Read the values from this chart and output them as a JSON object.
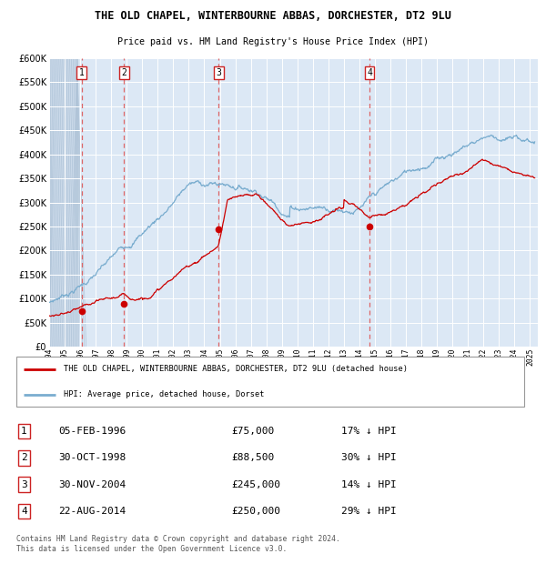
{
  "title": "THE OLD CHAPEL, WINTERBOURNE ABBAS, DORCHESTER, DT2 9LU",
  "subtitle": "Price paid vs. HM Land Registry's House Price Index (HPI)",
  "hpi_line_color": "#7aadcf",
  "price_line_color": "#cc0000",
  "sale_marker_color": "#cc0000",
  "dashed_line_color": "#cc5555",
  "hatch_color": "#c5d5e5",
  "plot_bg_color": "#dce8f5",
  "ylim": [
    0,
    600000
  ],
  "yticks": [
    0,
    50000,
    100000,
    150000,
    200000,
    250000,
    300000,
    350000,
    400000,
    450000,
    500000,
    550000,
    600000
  ],
  "ytick_labels": [
    "£0",
    "£50K",
    "£100K",
    "£150K",
    "£200K",
    "£250K",
    "£300K",
    "£350K",
    "£400K",
    "£450K",
    "£500K",
    "£550K",
    "£600K"
  ],
  "sales": [
    {
      "num": 1,
      "date_decimal": 1996.09,
      "price": 75000,
      "label": "05-FEB-1996",
      "pct": "17%",
      "dir": "↓"
    },
    {
      "num": 2,
      "date_decimal": 1998.83,
      "price": 88500,
      "label": "30-OCT-1998",
      "pct": "30%",
      "dir": "↓"
    },
    {
      "num": 3,
      "date_decimal": 2004.92,
      "price": 245000,
      "label": "30-NOV-2004",
      "pct": "14%",
      "dir": "↓"
    },
    {
      "num": 4,
      "date_decimal": 2014.65,
      "price": 250000,
      "label": "22-AUG-2014",
      "pct": "29%",
      "dir": "↓"
    }
  ],
  "legend_line1": "THE OLD CHAPEL, WINTERBOURNE ABBAS, DORCHESTER, DT2 9LU (detached house)",
  "legend_line2": "HPI: Average price, detached house, Dorset",
  "footer": "Contains HM Land Registry data © Crown copyright and database right 2024.\nThis data is licensed under the Open Government Licence v3.0.",
  "xlim_start": 1994.0,
  "xlim_end": 2025.5,
  "hatch_end": 1995.8
}
